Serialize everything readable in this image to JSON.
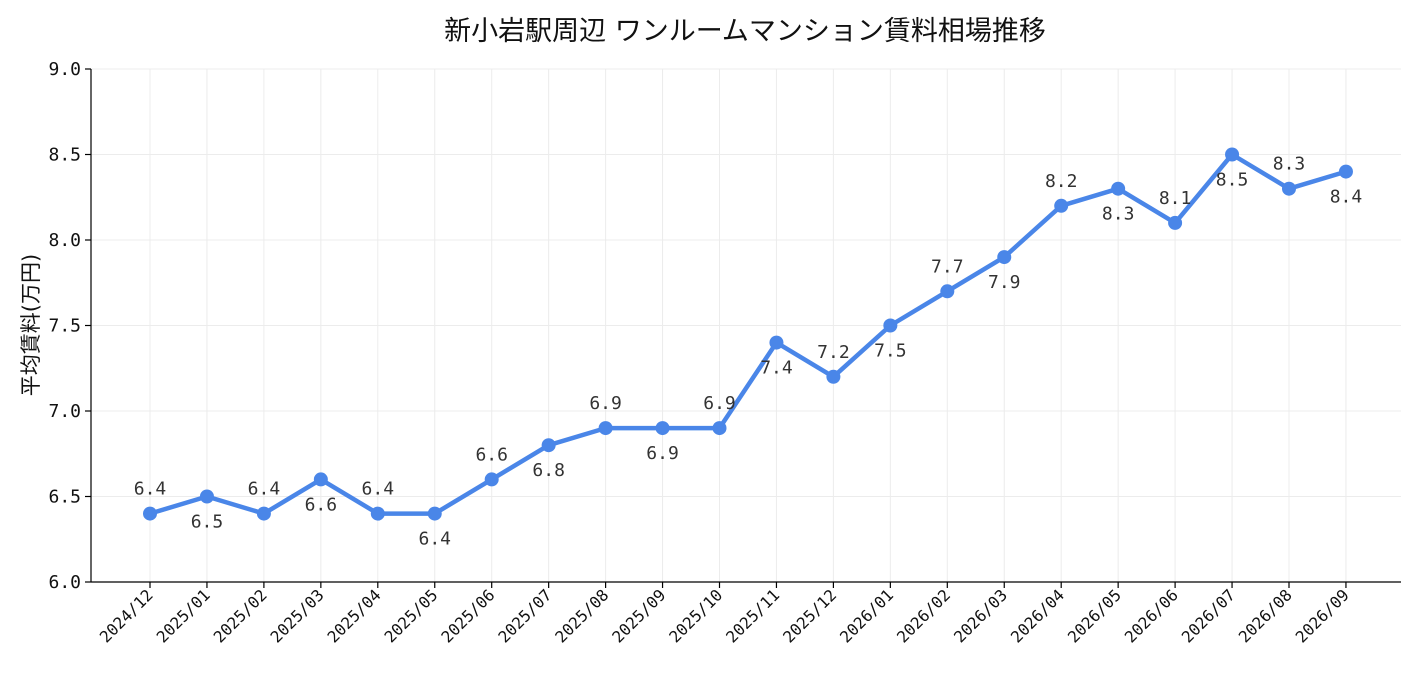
{
  "chart_data": {
    "type": "line",
    "title": "新小岩駅周辺 ワンルームマンション賃料相場推移",
    "xlabel": "",
    "ylabel": "平均賃料(万円)",
    "ylim": [
      6.0,
      9.0
    ],
    "yticks": [
      "6.0",
      "6.5",
      "7.0",
      "7.5",
      "8.0",
      "8.5",
      "9.0"
    ],
    "grid": true,
    "categories": [
      "2024/12",
      "2025/01",
      "2025/02",
      "2025/03",
      "2025/04",
      "2025/05",
      "2025/06",
      "2025/07",
      "2025/08",
      "2025/09",
      "2025/10",
      "2025/11",
      "2025/12",
      "2026/01",
      "2026/02",
      "2026/03",
      "2026/04",
      "2026/05",
      "2026/06",
      "2026/07",
      "2026/08",
      "2026/09"
    ],
    "values": [
      6.4,
      6.5,
      6.4,
      6.6,
      6.4,
      6.4,
      6.6,
      6.8,
      6.9,
      6.9,
      6.9,
      7.4,
      7.2,
      7.5,
      7.7,
      7.9,
      8.2,
      8.3,
      8.1,
      8.5,
      8.3,
      8.4
    ],
    "data_labels": [
      "6.4",
      "6.5",
      "6.4",
      "6.6",
      "6.4",
      "6.4",
      "6.6",
      "6.8",
      "6.9",
      "6.9",
      "6.9",
      "7.4",
      "7.2",
      "7.5",
      "7.7",
      "7.9",
      "8.2",
      "8.3",
      "8.1",
      "8.5",
      "8.3",
      "8.4"
    ],
    "label_position": [
      "above",
      "below",
      "above",
      "below",
      "above",
      "below",
      "above",
      "below",
      "above",
      "below",
      "above",
      "below",
      "above",
      "below",
      "above",
      "below",
      "above",
      "below",
      "above",
      "below",
      "above",
      "below"
    ],
    "line_color": "#4a86e8"
  }
}
